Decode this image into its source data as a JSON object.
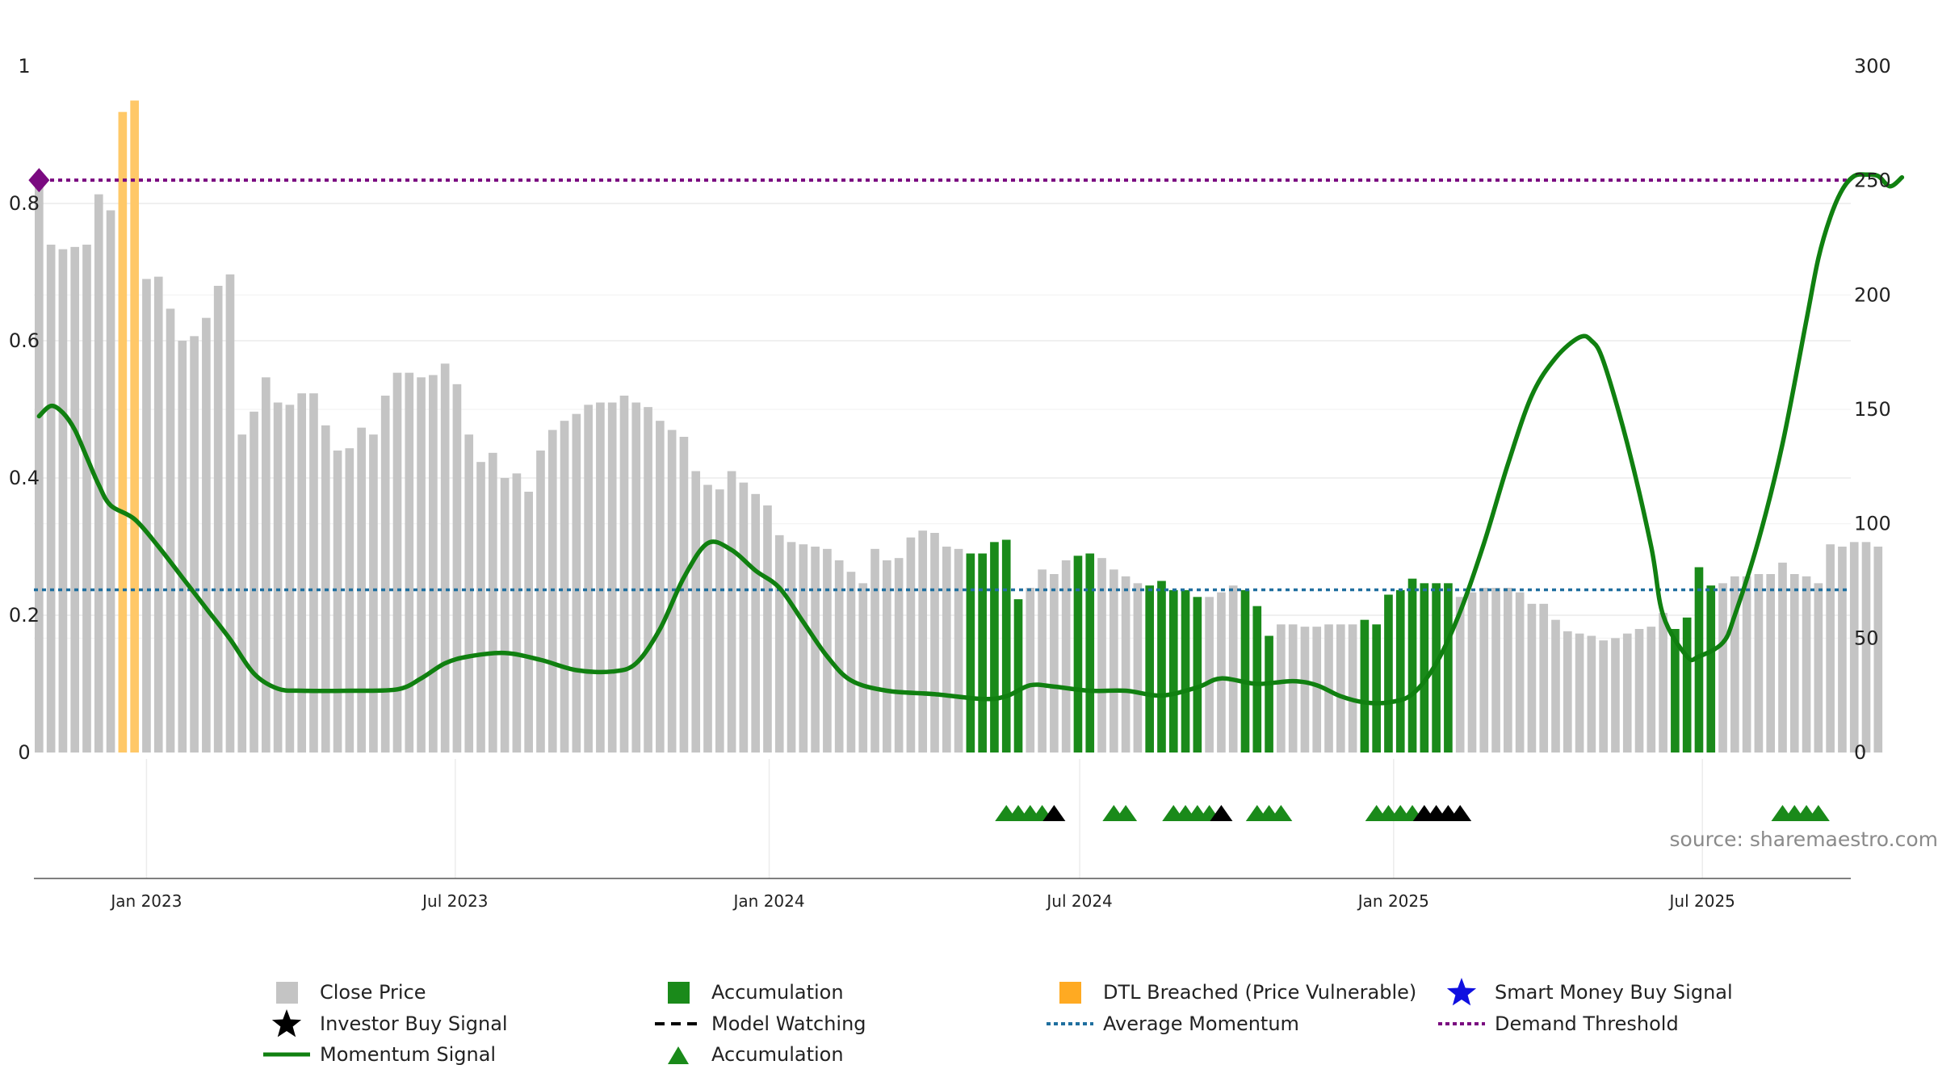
{
  "chart_data": {
    "type": "bar",
    "title": "",
    "source_note": "source: sharemaestro.com",
    "x_ticks": [
      "Jan 2023",
      "Jul 2023",
      "Jan 2024",
      "Jul 2024",
      "Jan 2025",
      "Jul 2025"
    ],
    "x_tick_dates": [
      "2023-01-01",
      "2023-07-01",
      "2024-01-01",
      "2024-07-01",
      "2025-01-01",
      "2025-07-01"
    ],
    "x_range": [
      "2022-10-27",
      "2025-09-26"
    ],
    "y_left": {
      "range": [
        0,
        1
      ],
      "ticks": [
        0,
        0.2,
        0.4,
        0.6,
        0.8
      ],
      "tick_labels": [
        "0",
        "0.2",
        "0.4",
        "0.6",
        "0.8"
      ],
      "top_label": "1"
    },
    "y_right": {
      "range": [
        0,
        300
      ],
      "ticks": [
        0,
        50,
        100,
        150,
        200,
        250,
        300
      ],
      "tick_labels": [
        "0",
        "50",
        "100",
        "150",
        "200",
        "250",
        "300"
      ]
    },
    "grid": true,
    "legend_position": "bottom",
    "colors": {
      "close_price": "#c4c4c4",
      "accumulation": "#1a8a1a",
      "dtl_breached": "#ffc868",
      "momentum": "#108010",
      "average_momentum": "#1f6f9f",
      "demand_threshold": "#7a0a80",
      "investor_buy": "#000000",
      "smart_money": "#1010e0"
    },
    "legend": [
      {
        "label": "Close Price",
        "icon": "gray-square-icon"
      },
      {
        "label": "Accumulation",
        "icon": "green-square-icon"
      },
      {
        "label": "DTL Breached (Price Vulnerable)",
        "icon": "orange-square-icon"
      },
      {
        "label": "Smart Money Buy Signal",
        "icon": "blue-star-icon"
      },
      {
        "label": "Investor Buy Signal",
        "icon": "black-star-icon"
      },
      {
        "label": "Model Watching",
        "icon": "black-dashed-line-icon"
      },
      {
        "label": "Average Momentum",
        "icon": "blue-dotted-line-icon"
      },
      {
        "label": "Demand Threshold",
        "icon": "purple-dotted-line-icon"
      },
      {
        "label": "Momentum Signal",
        "icon": "green-line-icon"
      },
      {
        "label": "Accumulation",
        "icon": "green-triangle-icon"
      }
    ],
    "average_momentum": 0.237,
    "demand_threshold": 0.834,
    "bar_start_date": "2022-10-30",
    "bar_step_days": 7,
    "close_prices": [
      250,
      222,
      220,
      221,
      222,
      244,
      237,
      280,
      285,
      207,
      208,
      194,
      180,
      182,
      190,
      204,
      209,
      139,
      149,
      164,
      153,
      152,
      157,
      157,
      143,
      132,
      133,
      142,
      139,
      156,
      166,
      166,
      164,
      165,
      170,
      161,
      139,
      127,
      131,
      120,
      122,
      114,
      132,
      141,
      145,
      148,
      152,
      153,
      153,
      156,
      153,
      151,
      145,
      141,
      138,
      123,
      117,
      115,
      123,
      118,
      113,
      108,
      95,
      92,
      91,
      90,
      89,
      84,
      79,
      74,
      89,
      84,
      85,
      94,
      97,
      96,
      90,
      89,
      87,
      87,
      92,
      93,
      67,
      72,
      80,
      78,
      84,
      86,
      87,
      85,
      80,
      77,
      74,
      73,
      75,
      71,
      71,
      68,
      68,
      70,
      73,
      71,
      64,
      51,
      56,
      56,
      55,
      55,
      56,
      56,
      56,
      58,
      56,
      69,
      71,
      76,
      74,
      74,
      74,
      68,
      70,
      72,
      72,
      72,
      70,
      65,
      65,
      58,
      53,
      52,
      51,
      49,
      50,
      52,
      54,
      55,
      61,
      54,
      59,
      81,
      73,
      74,
      77,
      77,
      78,
      78,
      83,
      78,
      77,
      74,
      91,
      90,
      92,
      92,
      90
    ],
    "accumulation_bar_indices": [
      78,
      79,
      80,
      81,
      82,
      87,
      88,
      93,
      94,
      95,
      96,
      97,
      101,
      102,
      103,
      111,
      112,
      113,
      114,
      115,
      116,
      117,
      118,
      137,
      138,
      139,
      140
    ],
    "dtl_breached_bar_indices": [
      7,
      8
    ],
    "momentum_signal": [
      [
        "2022-10-30",
        0.49
      ],
      [
        "2022-11-06",
        0.505
      ],
      [
        "2022-11-13",
        0.495
      ],
      [
        "2022-11-20",
        0.47
      ],
      [
        "2022-11-27",
        0.43
      ],
      [
        "2022-12-04",
        0.39
      ],
      [
        "2022-12-11",
        0.36
      ],
      [
        "2022-12-25",
        0.34
      ],
      [
        "2023-01-08",
        0.3
      ],
      [
        "2023-01-22",
        0.255
      ],
      [
        "2023-02-05",
        0.21
      ],
      [
        "2023-02-19",
        0.165
      ],
      [
        "2023-03-05",
        0.115
      ],
      [
        "2023-03-19",
        0.093
      ],
      [
        "2023-04-02",
        0.09
      ],
      [
        "2023-04-30",
        0.09
      ],
      [
        "2023-05-28",
        0.092
      ],
      [
        "2023-06-11",
        0.108
      ],
      [
        "2023-06-25",
        0.13
      ],
      [
        "2023-07-09",
        0.14
      ],
      [
        "2023-07-30",
        0.145
      ],
      [
        "2023-08-20",
        0.135
      ],
      [
        "2023-09-10",
        0.12
      ],
      [
        "2023-10-01",
        0.118
      ],
      [
        "2023-10-15",
        0.13
      ],
      [
        "2023-10-29",
        0.18
      ],
      [
        "2023-11-12",
        0.255
      ],
      [
        "2023-11-26",
        0.305
      ],
      [
        "2023-12-10",
        0.295
      ],
      [
        "2023-12-24",
        0.265
      ],
      [
        "2024-01-07",
        0.24
      ],
      [
        "2024-01-21",
        0.19
      ],
      [
        "2024-02-04",
        0.14
      ],
      [
        "2024-02-18",
        0.105
      ],
      [
        "2024-03-10",
        0.09
      ],
      [
        "2024-04-07",
        0.085
      ],
      [
        "2024-05-05",
        0.078
      ],
      [
        "2024-05-19",
        0.082
      ],
      [
        "2024-06-02",
        0.098
      ],
      [
        "2024-06-16",
        0.096
      ],
      [
        "2024-07-07",
        0.09
      ],
      [
        "2024-07-28",
        0.09
      ],
      [
        "2024-08-18",
        0.083
      ],
      [
        "2024-09-08",
        0.095
      ],
      [
        "2024-09-22",
        0.108
      ],
      [
        "2024-10-13",
        0.1
      ],
      [
        "2024-11-03",
        0.104
      ],
      [
        "2024-11-17",
        0.098
      ],
      [
        "2024-12-01",
        0.082
      ],
      [
        "2024-12-15",
        0.073
      ],
      [
        "2024-12-29",
        0.073
      ],
      [
        "2025-01-12",
        0.085
      ],
      [
        "2025-01-26",
        0.13
      ],
      [
        "2025-02-09",
        0.205
      ],
      [
        "2025-02-23",
        0.305
      ],
      [
        "2025-03-09",
        0.42
      ],
      [
        "2025-03-23",
        0.52
      ],
      [
        "2025-04-06",
        0.575
      ],
      [
        "2025-04-20",
        0.605
      ],
      [
        "2025-04-27",
        0.6
      ],
      [
        "2025-05-04",
        0.57
      ],
      [
        "2025-05-18",
        0.45
      ],
      [
        "2025-06-01",
        0.3
      ],
      [
        "2025-06-08",
        0.2
      ],
      [
        "2025-06-22",
        0.14
      ],
      [
        "2025-06-29",
        0.14
      ],
      [
        "2025-07-13",
        0.16
      ],
      [
        "2025-07-20",
        0.2
      ],
      [
        "2025-08-03",
        0.31
      ],
      [
        "2025-08-17",
        0.45
      ],
      [
        "2025-08-31",
        0.63
      ],
      [
        "2025-09-07",
        0.72
      ],
      [
        "2025-09-14",
        0.78
      ],
      [
        "2025-09-21",
        0.82
      ],
      [
        "2025-09-28",
        0.84
      ],
      [
        "2025-10-05",
        0.842
      ],
      [
        "2025-10-12",
        0.84
      ],
      [
        "2025-10-19",
        0.825
      ],
      [
        "2025-10-26",
        0.838
      ]
    ],
    "accumulation_markers": [
      "2024-05-19",
      "2024-05-26",
      "2024-06-02",
      "2024-06-09",
      "2024-07-21",
      "2024-07-28",
      "2024-08-25",
      "2024-09-01",
      "2024-09-08",
      "2024-09-15",
      "2024-10-13",
      "2024-10-20",
      "2024-10-27",
      "2024-12-22",
      "2024-12-29",
      "2025-01-05",
      "2025-01-12",
      "2025-08-17",
      "2025-08-24",
      "2025-08-31",
      "2025-09-07"
    ],
    "investor_buy_markers": [
      "2024-06-16",
      "2024-09-22",
      "2025-01-19",
      "2025-01-26",
      "2025-02-02",
      "2025-02-09"
    ],
    "demand_threshold_marker": "2022-10-30"
  }
}
